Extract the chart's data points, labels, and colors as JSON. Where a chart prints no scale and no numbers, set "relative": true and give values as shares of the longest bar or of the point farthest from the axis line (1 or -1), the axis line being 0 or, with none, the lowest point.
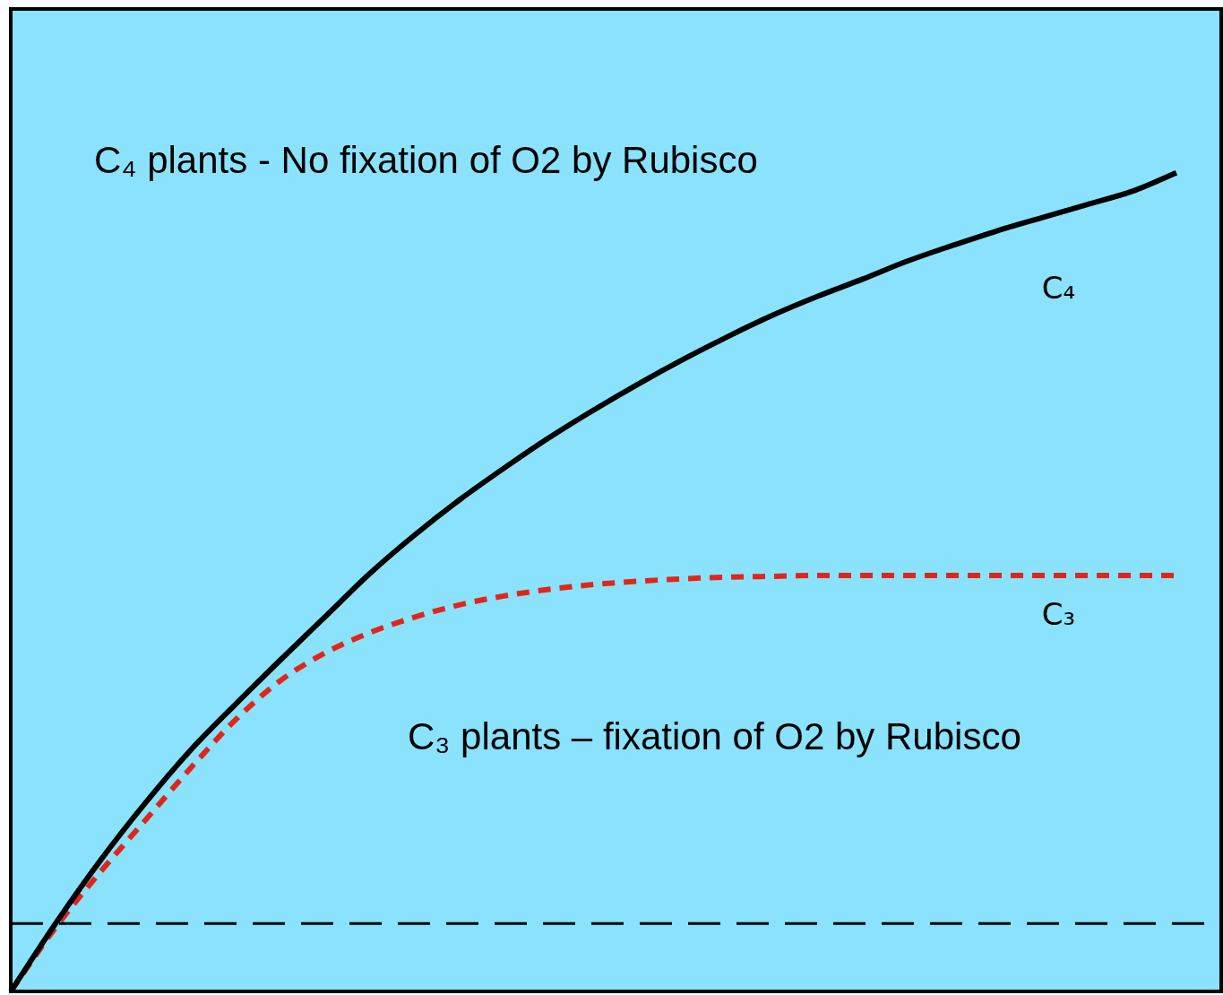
{
  "chart_data": {
    "type": "line",
    "relative": true,
    "categories": [
      null,
      null,
      null,
      null,
      null,
      null,
      null,
      null,
      null,
      null,
      null,
      null,
      null,
      null,
      null,
      null,
      null,
      null,
      null,
      null,
      null,
      null,
      null,
      null,
      null,
      null,
      null,
      null
    ],
    "series": [
      {
        "name": "C₄",
        "color": "#000000",
        "line_style": "solid",
        "values": [
          0,
          0.083,
          0.16,
          0.23,
          0.294,
          0.35,
          0.404,
          0.457,
          0.51,
          0.557,
          0.6,
          0.639,
          0.676,
          0.71,
          0.742,
          0.772,
          0.8,
          0.826,
          0.849,
          0.87,
          0.892,
          0.911,
          0.929,
          0.945,
          0.961,
          0.977,
          1,
          null
        ]
      },
      {
        "name": "C₃",
        "color": "#e0261b",
        "line_style": "dashed",
        "values": [
          0,
          0.078,
          0.146,
          0.209,
          0.272,
          0.331,
          0.379,
          0.413,
          0.438,
          0.457,
          0.472,
          0.483,
          0.491,
          0.497,
          0.501,
          0.504,
          0.506,
          0.507,
          0.508,
          0.508,
          0.508,
          0.508,
          0.508,
          0.508,
          0.508,
          0.508,
          0.508,
          null
        ]
      }
    ],
    "ref_lines": [
      {
        "axis": "y",
        "value": 0.083,
        "color": "#000000",
        "line_style": "dashed"
      }
    ],
    "annotations": [
      "C₄ plants - No fixation of O2 by Rubisco",
      "C₃ plants – fixation of O2 by Rubisco"
    ],
    "marker": "none",
    "legend": false
  }
}
